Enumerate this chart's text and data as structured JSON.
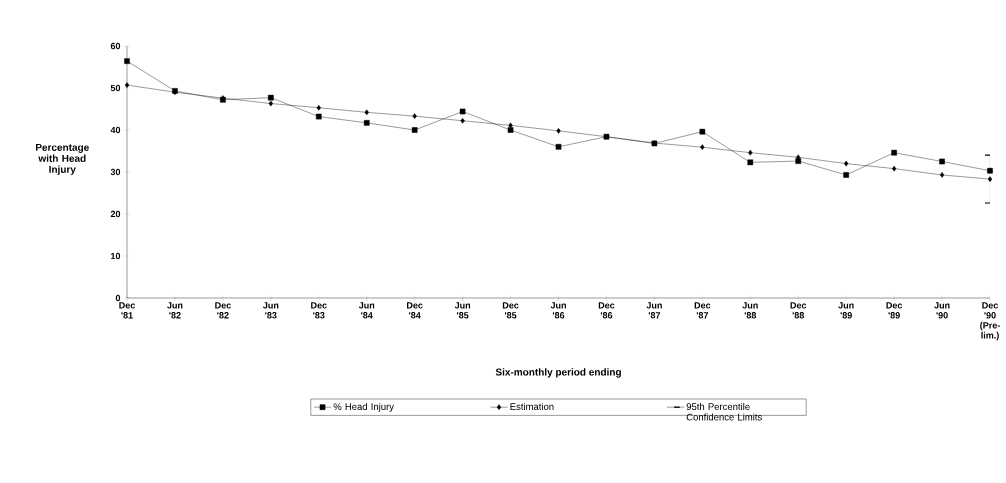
{
  "chart_data": {
    "type": "line",
    "xlabel": "Six-monthly period ending",
    "ylabel": "Percentage with Head Injury",
    "categories": [
      "Dec '81",
      "Jun '82",
      "Dec '82",
      "Jun '83",
      "Dec '83",
      "Jun '84",
      "Dec '84",
      "Jun '85",
      "Dec '85",
      "Jun '86",
      "Dec '86",
      "Jun '87",
      "Dec '87",
      "Jun '88",
      "Dec '88",
      "Jun '89",
      "Dec '89",
      "Jun '90",
      "Dec '90 (Pre-lim.)"
    ],
    "series": [
      {
        "name": "% Head Injury",
        "color": "#000000",
        "marker": "square",
        "values": [
          56.4,
          49.3,
          47.2,
          47.7,
          43.2,
          41.7,
          40,
          44.4,
          40,
          36,
          38.4,
          36.8,
          39.6,
          32.3,
          32.6,
          29.3,
          34.6,
          32.5,
          30.3
        ]
      },
      {
        "name": "Estimation",
        "color": "#000000",
        "marker": "diamond",
        "values": [
          50.7,
          49,
          47.6,
          46.3,
          45.3,
          44.2,
          43.3,
          42.2,
          41.1,
          39.8,
          38.4,
          36.9,
          35.9,
          34.6,
          33.5,
          32,
          30.8,
          29.3,
          28.3
        ]
      },
      {
        "name": "95th Percentile Confidence Limits",
        "type": "scatter",
        "color": "#000000",
        "x": [
          "Dec '90 (Pre-lim.)"
        ],
        "values": [
          30.3
        ],
        "errors": [
          [
            22.6,
            34
          ]
        ]
      }
    ],
    "ylim": [
      0,
      60
    ],
    "yticks": [
      0,
      10,
      20,
      30,
      40,
      50,
      60
    ],
    "legend": "bottom"
  }
}
